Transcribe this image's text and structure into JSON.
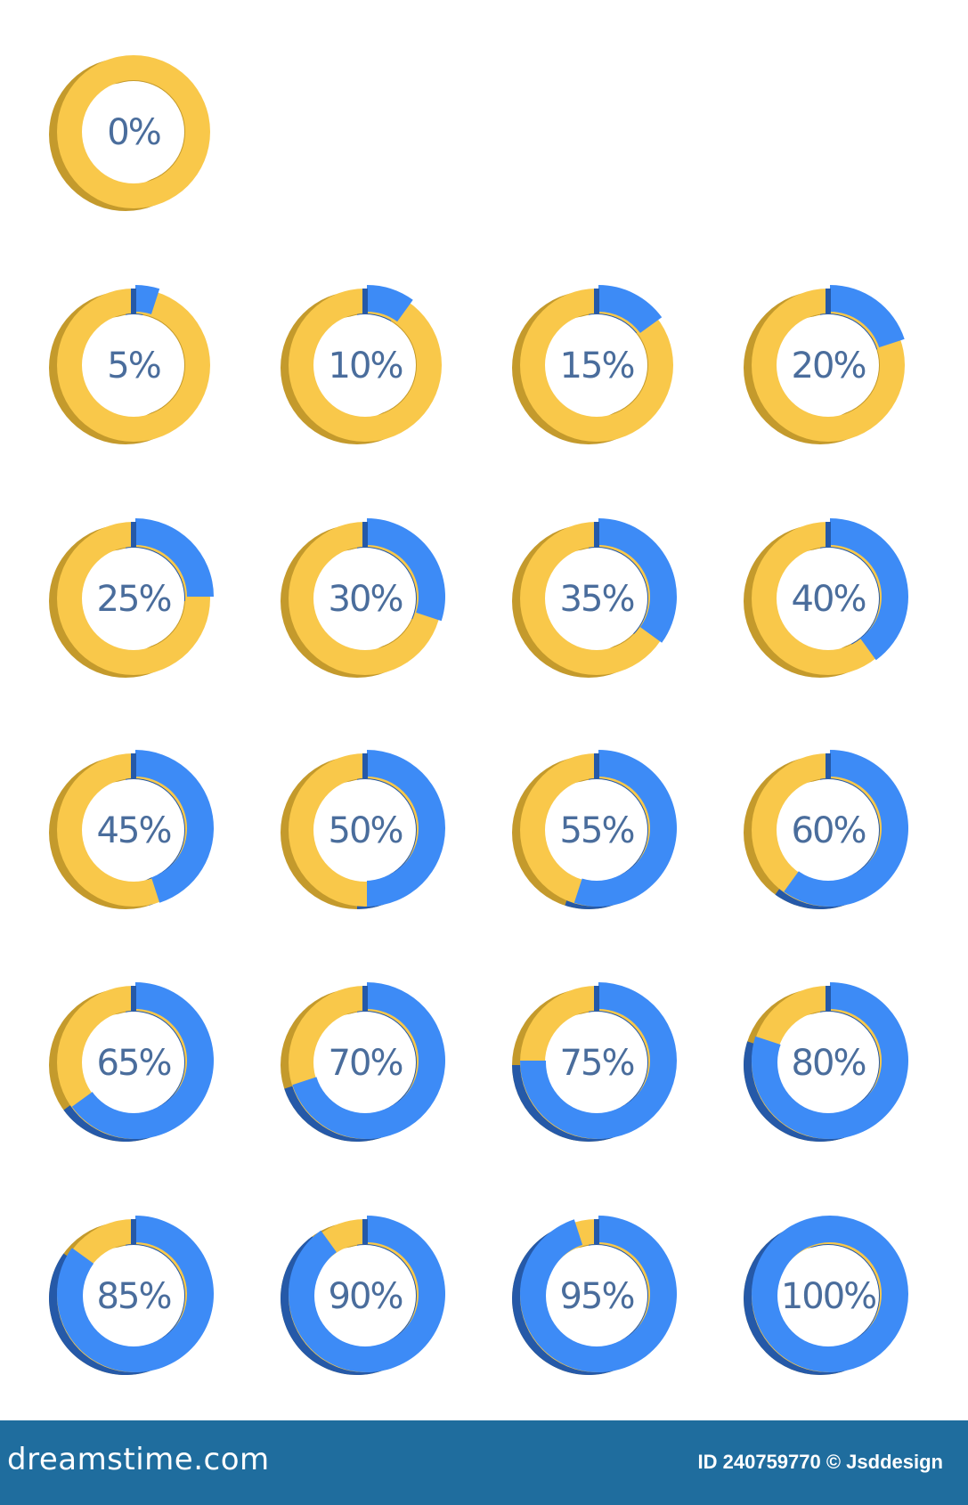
{
  "colors": {
    "background": "#ffffff",
    "remaining": "#f9c84a",
    "remaining_shadow": "#c49a2c",
    "filled": "#3d8bf6",
    "filled_shadow": "#2559a8",
    "label": "#4a6d9c",
    "footer": "#1f6d9e",
    "footer_text": "#ffffff"
  },
  "donuts": [
    {
      "label": "0%",
      "fraction": 0.0
    },
    {
      "label": "5%",
      "fraction": 0.05
    },
    {
      "label": "10%",
      "fraction": 0.1
    },
    {
      "label": "15%",
      "fraction": 0.15
    },
    {
      "label": "20%",
      "fraction": 0.2
    },
    {
      "label": "25%",
      "fraction": 0.25
    },
    {
      "label": "30%",
      "fraction": 0.3
    },
    {
      "label": "35%",
      "fraction": 0.35
    },
    {
      "label": "40%",
      "fraction": 0.4
    },
    {
      "label": "45%",
      "fraction": 0.45
    },
    {
      "label": "50%",
      "fraction": 0.5
    },
    {
      "label": "55%",
      "fraction": 0.55
    },
    {
      "label": "60%",
      "fraction": 0.6
    },
    {
      "label": "65%",
      "fraction": 0.65
    },
    {
      "label": "70%",
      "fraction": 0.7
    },
    {
      "label": "75%",
      "fraction": 0.75
    },
    {
      "label": "80%",
      "fraction": 0.8
    },
    {
      "label": "85%",
      "fraction": 0.85
    },
    {
      "label": "90%",
      "fraction": 0.9
    },
    {
      "label": "95%",
      "fraction": 0.95
    },
    {
      "label": "100%",
      "fraction": 1.0
    }
  ],
  "footer": {
    "logo_text": "dreamstime.com",
    "credit_text": "ID 240759770 © Jsddesign"
  }
}
